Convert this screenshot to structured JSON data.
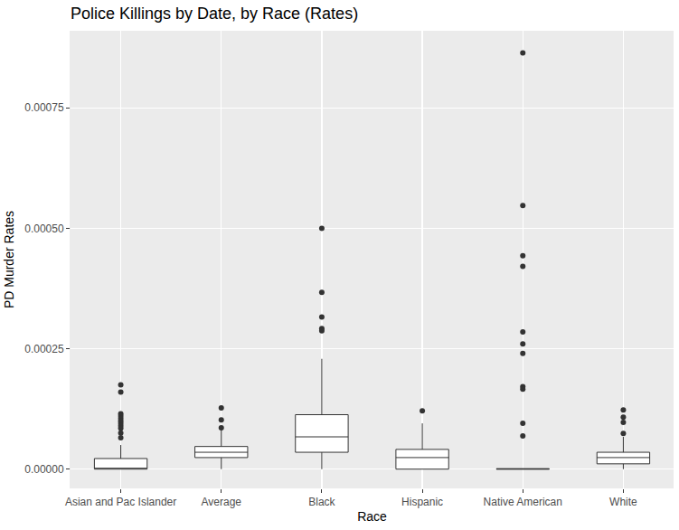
{
  "chart_data": {
    "type": "box",
    "title": "Police Killings by Date, by Race (Rates)",
    "x_label": "Race",
    "y_label": "PD Murder Rates",
    "categories": [
      "Asian and Pac Islander",
      "Average",
      "Black",
      "Hispanic",
      "Native American",
      "White"
    ],
    "lower_whisker": [
      0,
      0,
      0,
      0,
      0,
      0
    ],
    "q1": [
      0,
      2.4e-05,
      3.5e-05,
      0,
      0,
      1.1e-05
    ],
    "median": [
      0,
      3.5e-05,
      6.7e-05,
      2.4e-05,
      0,
      2.4e-05
    ],
    "q3": [
      2.2e-05,
      4.7e-05,
      0.000113,
      4.1e-05,
      1e-06,
      3.5e-05
    ],
    "upper_whisker": [
      5e-05,
      8.2e-05,
      0.000229,
      9.5e-05,
      0,
      6.7e-05
    ],
    "outliers": [
      [
        0.000175,
        0.00016,
        0.000115,
        0.00011,
        0.000105,
        0.0001,
        9.5e-05,
        9e-05,
        8.5e-05,
        7.5e-05,
        6.5e-05
      ],
      [
        0.000127,
        0.000102,
        8.6e-05
      ],
      [
        0.0005,
        0.000367,
        0.000316,
        0.000292,
        0.000287
      ],
      [
        0.000121
      ],
      [
        0.000864,
        0.000547,
        0.000443,
        0.000421,
        0.000285,
        0.00026,
        0.00024,
        0.000171,
        0.000166,
        9.5e-05,
        6.9e-05
      ],
      [
        0.000123,
        0.000108,
        9.7e-05,
        7.4e-05
      ]
    ],
    "ylim": [
      -4e-05,
      0.00091
    ],
    "yticks": [
      {
        "value": 0,
        "label": "0.00000"
      },
      {
        "value": 0.00025,
        "label": "0.00025"
      },
      {
        "value": 0.0005,
        "label": "0.00050"
      },
      {
        "value": 0.00075,
        "label": "0.00075"
      }
    ],
    "grid": true,
    "marker": "circle"
  }
}
